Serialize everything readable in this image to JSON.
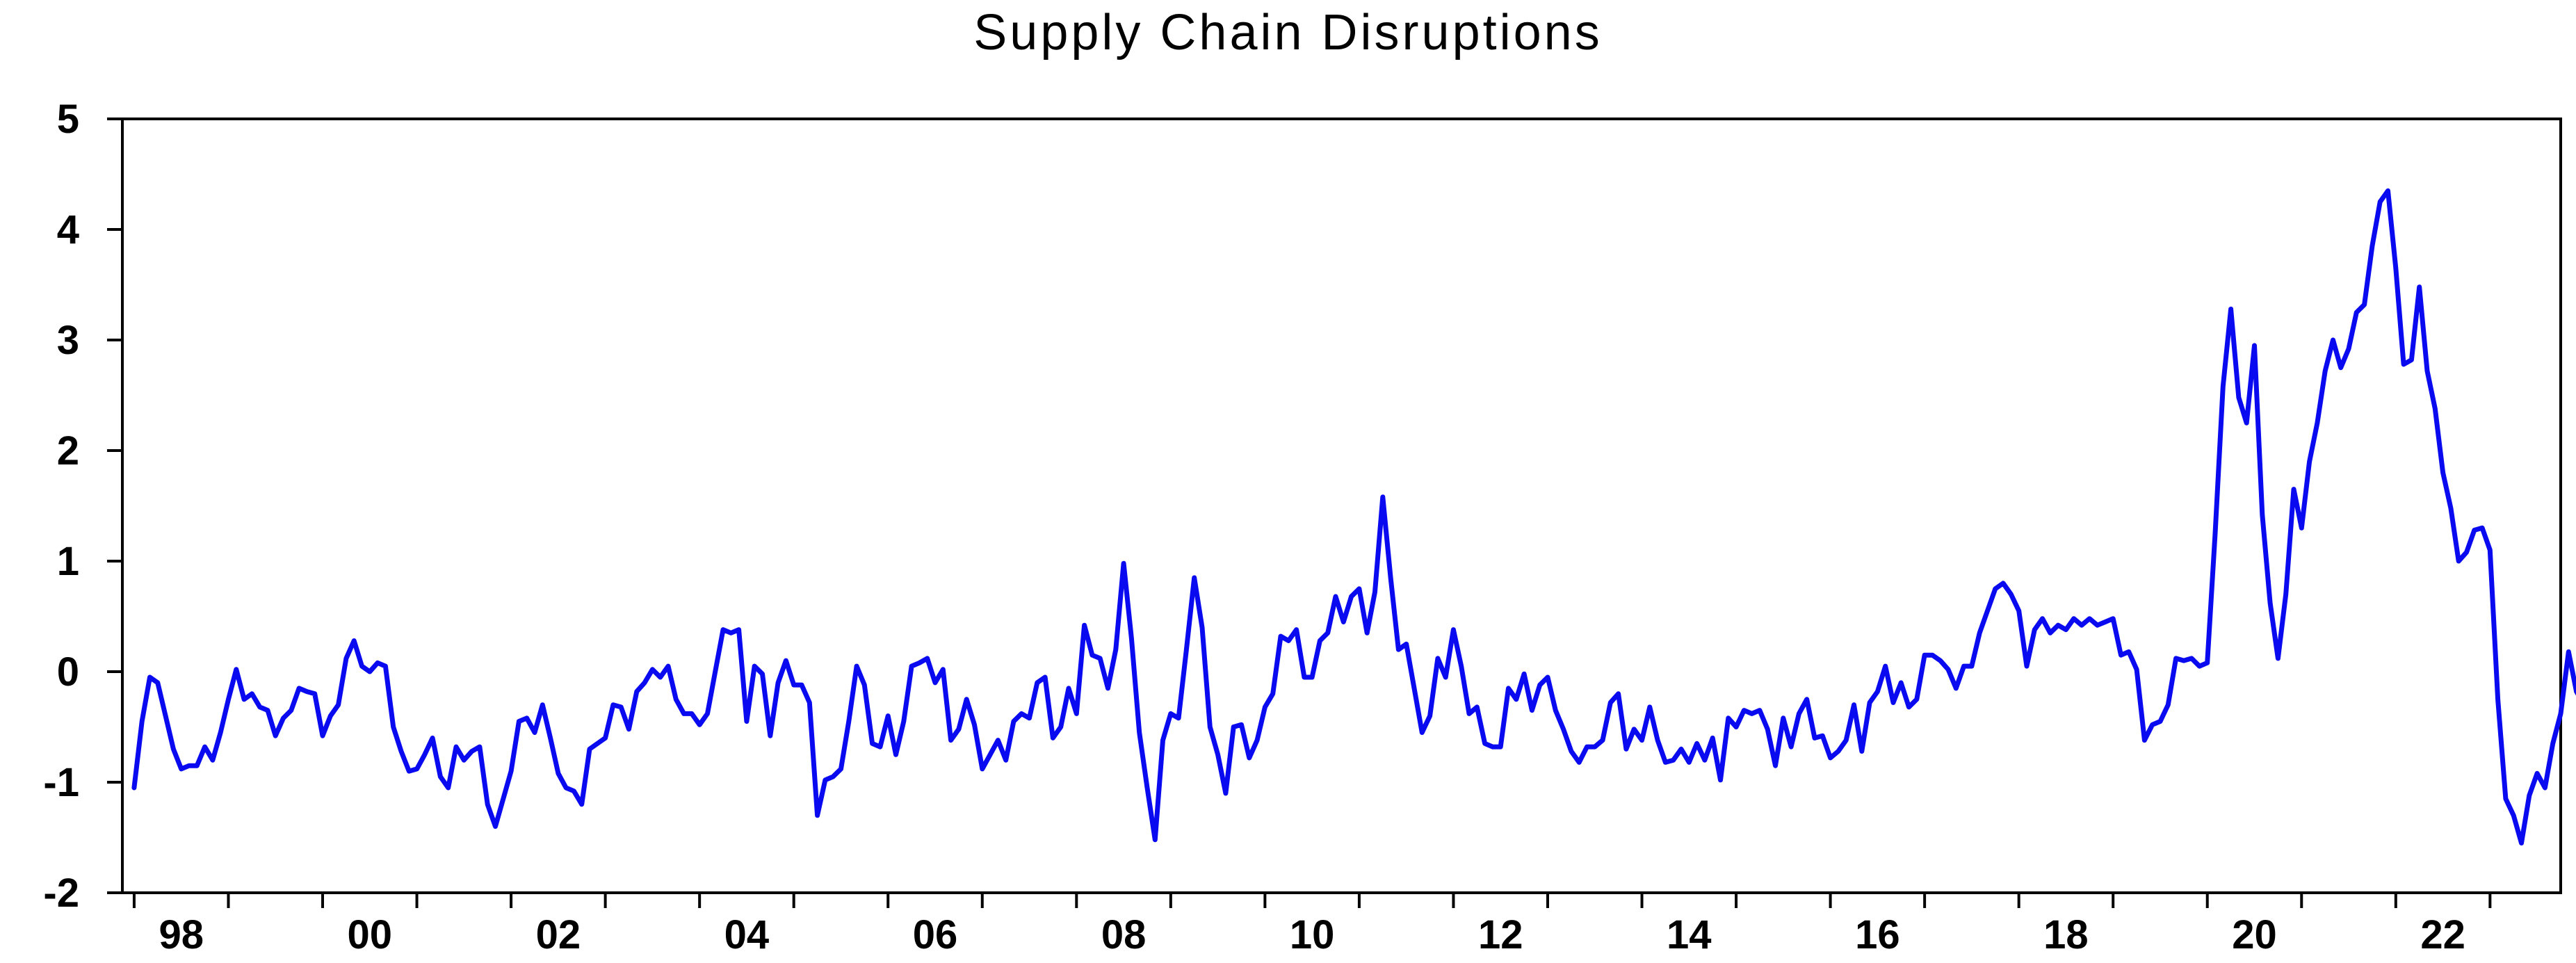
{
  "colors": {
    "line": "#0a0af0",
    "axes": "#000000",
    "background": "#ffffff"
  },
  "chart_data": {
    "type": "line",
    "title": "Supply Chain Disruptions",
    "xlabel": "",
    "ylabel": "",
    "ylim": [
      -2,
      5
    ],
    "xlim": [
      1997.875,
      2023.75
    ],
    "grid": false,
    "yticks": [
      -2,
      -1,
      0,
      1,
      2,
      3,
      4,
      5
    ],
    "ytick_labels": [
      "-2",
      "-1",
      "0",
      "1",
      "2",
      "3",
      "4",
      "5"
    ],
    "xtick_positions": [
      1998,
      2000,
      2002,
      2004,
      2006,
      2008,
      2010,
      2012,
      2014,
      2016,
      2018,
      2020,
      2022
    ],
    "xtick_labels": [
      "98",
      "00",
      "02",
      "04",
      "06",
      "08",
      "10",
      "12",
      "14",
      "16",
      "18",
      "20",
      "22"
    ],
    "x_start": "1998-01",
    "x_end": "2023-09",
    "frequency": "monthly",
    "series": [
      {
        "values": [
          -1.05,
          -0.45,
          -0.05,
          -0.1,
          -0.4,
          -0.7,
          -0.88,
          -0.85,
          -0.85,
          -0.68,
          -0.8,
          -0.55,
          -0.25,
          0.02,
          -0.25,
          -0.2,
          -0.32,
          -0.35,
          -0.58,
          -0.42,
          -0.35,
          -0.15,
          -0.18,
          -0.2,
          -0.58,
          -0.4,
          -0.3,
          0.12,
          0.28,
          0.05,
          0.0,
          0.08,
          0.05,
          -0.5,
          -0.72,
          -0.9,
          -0.88,
          -0.75,
          -0.6,
          -0.95,
          -1.05,
          -0.68,
          -0.8,
          -0.72,
          -0.68,
          -1.2,
          -1.4,
          -1.15,
          -0.9,
          -0.45,
          -0.42,
          -0.55,
          -0.3,
          -0.6,
          -0.92,
          -1.05,
          -1.08,
          -1.2,
          -0.7,
          -0.65,
          -0.6,
          -0.3,
          -0.32,
          -0.52,
          -0.18,
          -0.1,
          0.02,
          -0.05,
          0.05,
          -0.25,
          -0.38,
          -0.38,
          -0.48,
          -0.38,
          0.0,
          0.38,
          0.35,
          0.38,
          -0.45,
          0.05,
          -0.02,
          -0.58,
          -0.1,
          0.1,
          -0.12,
          -0.12,
          -0.28,
          -1.3,
          -0.98,
          -0.95,
          -0.88,
          -0.45,
          0.05,
          -0.12,
          -0.65,
          -0.68,
          -0.4,
          -0.75,
          -0.45,
          0.05,
          0.08,
          0.12,
          -0.1,
          0.02,
          -0.62,
          -0.52,
          -0.25,
          -0.48,
          -0.88,
          -0.75,
          -0.62,
          -0.8,
          -0.45,
          -0.38,
          -0.42,
          -0.1,
          -0.05,
          -0.6,
          -0.5,
          -0.15,
          -0.38,
          0.42,
          0.15,
          0.12,
          -0.15,
          0.2,
          0.98,
          0.3,
          -0.55,
          -1.05,
          -1.52,
          -0.62,
          -0.38,
          -0.42,
          0.2,
          0.85,
          0.4,
          -0.5,
          -0.75,
          -1.1,
          -0.5,
          -0.48,
          -0.78,
          -0.62,
          -0.32,
          -0.2,
          0.32,
          0.28,
          0.38,
          -0.05,
          -0.05,
          0.28,
          0.35,
          0.68,
          0.45,
          0.68,
          0.75,
          0.35,
          0.72,
          1.58,
          0.85,
          0.2,
          0.25,
          -0.15,
          -0.55,
          -0.4,
          0.12,
          -0.05,
          0.38,
          0.05,
          -0.38,
          -0.32,
          -0.65,
          -0.68,
          -0.68,
          -0.15,
          -0.25,
          -0.02,
          -0.35,
          -0.12,
          -0.05,
          -0.35,
          -0.52,
          -0.72,
          -0.82,
          -0.68,
          -0.68,
          -0.62,
          -0.28,
          -0.2,
          -0.7,
          -0.52,
          -0.62,
          -0.32,
          -0.62,
          -0.82,
          -0.8,
          -0.7,
          -0.82,
          -0.65,
          -0.8,
          -0.6,
          -0.98,
          -0.42,
          -0.5,
          -0.35,
          -0.38,
          -0.35,
          -0.52,
          -0.85,
          -0.42,
          -0.68,
          -0.38,
          -0.25,
          -0.6,
          -0.58,
          -0.78,
          -0.72,
          -0.62,
          -0.3,
          -0.72,
          -0.28,
          -0.18,
          0.05,
          -0.28,
          -0.1,
          -0.32,
          -0.25,
          0.15,
          0.15,
          0.1,
          0.02,
          -0.15,
          0.05,
          0.05,
          0.35,
          0.55,
          0.75,
          0.8,
          0.7,
          0.55,
          0.05,
          0.38,
          0.48,
          0.35,
          0.42,
          0.38,
          0.48,
          0.42,
          0.48,
          0.42,
          0.45,
          0.48,
          0.15,
          0.18,
          0.02,
          -0.62,
          -0.48,
          -0.45,
          -0.3,
          0.12,
          0.1,
          0.12,
          0.05,
          0.08,
          1.25,
          2.58,
          3.28,
          2.48,
          2.25,
          2.95,
          1.42,
          0.62,
          0.12,
          0.7,
          1.65,
          1.3,
          1.9,
          2.25,
          2.72,
          3.0,
          2.75,
          2.92,
          3.25,
          3.32,
          3.85,
          4.25,
          4.35,
          3.65,
          2.78,
          2.82,
          3.48,
          2.72,
          2.38,
          1.8,
          1.48,
          1.0,
          1.08,
          1.28,
          1.3,
          1.1,
          -0.25,
          -1.15,
          -1.3,
          -1.55,
          -1.12,
          -0.92,
          -1.05,
          -0.65,
          -0.38,
          0.18,
          -0.18,
          -0.3,
          -0.18
        ]
      }
    ]
  }
}
